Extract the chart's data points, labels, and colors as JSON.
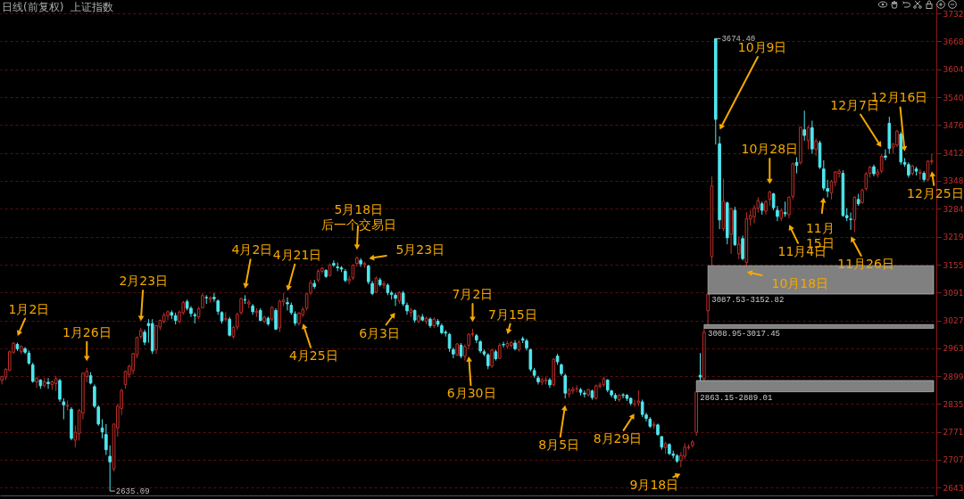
{
  "chart_data": {
    "type": "candlestick",
    "title": "日线(前复权)  上证指数",
    "categories": [
      null,
      null,
      null,
      null,
      null,
      null,
      null,
      null,
      null,
      null,
      null,
      null,
      null,
      null,
      null,
      null,
      null,
      null,
      null,
      null,
      null,
      null,
      null,
      null,
      null,
      null,
      null,
      null,
      null,
      null,
      null,
      null,
      null,
      null,
      null,
      null,
      null,
      null,
      null,
      null,
      null,
      null,
      null,
      null,
      null,
      null,
      null,
      null,
      null,
      null,
      null,
      null,
      null,
      null,
      null,
      null,
      null,
      null,
      null,
      null,
      null,
      null,
      null,
      null,
      null,
      null,
      null,
      null,
      null,
      null,
      null,
      null,
      null,
      null,
      null,
      null,
      null,
      null,
      null,
      null,
      null,
      null,
      null,
      null,
      null,
      null,
      null,
      null,
      null,
      null,
      null,
      null,
      null,
      null,
      null,
      null,
      null,
      null,
      null,
      null,
      null,
      null,
      null,
      null,
      null,
      null,
      null,
      null,
      null,
      null,
      null,
      null,
      null,
      null,
      null,
      null,
      null,
      null,
      null,
      null,
      null,
      null,
      null,
      null,
      null,
      null,
      null,
      null,
      null,
      null,
      null,
      null,
      null,
      null,
      null,
      null,
      null,
      null,
      null,
      null,
      null,
      null,
      null,
      null,
      null,
      null,
      null,
      null,
      null,
      null,
      null,
      null,
      null,
      null,
      null,
      null,
      null,
      null,
      null,
      null,
      null,
      null,
      null,
      null,
      null,
      null,
      null,
      null,
      null,
      null,
      null,
      null,
      null,
      null,
      null,
      null,
      null,
      null,
      null,
      null,
      null,
      null,
      null,
      null,
      null,
      null,
      null,
      null,
      null,
      null,
      null,
      null,
      null,
      null,
      null,
      null,
      null,
      null,
      null,
      null,
      null,
      null,
      null,
      null,
      null,
      null,
      null,
      null,
      null,
      null,
      null,
      null,
      null,
      null,
      null,
      null,
      null,
      null,
      null,
      null,
      null,
      null,
      null,
      null,
      null,
      null,
      null,
      null,
      null,
      null,
      null,
      null,
      null,
      null,
      null,
      null,
      null,
      null,
      null,
      null,
      null,
      null
    ],
    "ohlc": [
      [
        2890,
        2900,
        2880,
        2898
      ],
      [
        2897,
        2917,
        2890,
        2915
      ],
      [
        2913,
        2958,
        2910,
        2955
      ],
      [
        2954,
        2977,
        2950,
        2975
      ],
      [
        2972,
        2976,
        2957,
        2962
      ],
      [
        2955,
        2970,
        2950,
        2967
      ],
      [
        2962,
        2966,
        2950,
        2954
      ],
      [
        2952,
        2958,
        2925,
        2929
      ],
      [
        2925,
        2930,
        2884,
        2887
      ],
      [
        2886,
        2897,
        2872,
        2894
      ],
      [
        2890,
        2892,
        2870,
        2877
      ],
      [
        2878,
        2895,
        2873,
        2886
      ],
      [
        2885,
        2895,
        2870,
        2882
      ],
      [
        2880,
        2889,
        2868,
        2886
      ],
      [
        2882,
        2900,
        2865,
        2893
      ],
      [
        2889,
        2893,
        2840,
        2846
      ],
      [
        2840,
        2848,
        2800,
        2833
      ],
      [
        2830,
        2843,
        2820,
        2832
      ],
      [
        2823,
        2828,
        2752,
        2756
      ],
      [
        2752,
        2786,
        2735,
        2770
      ],
      [
        2767,
        2824,
        2751,
        2820
      ],
      [
        2814,
        2907,
        2800,
        2906
      ],
      [
        2898,
        2918,
        2885,
        2910
      ],
      [
        2900,
        2908,
        2880,
        2883
      ],
      [
        2875,
        2880,
        2826,
        2830
      ],
      [
        2828,
        2832,
        2785,
        2789
      ],
      [
        2780,
        2800,
        2756,
        2771
      ],
      [
        2765,
        2789,
        2718,
        2730
      ],
      [
        2715,
        2740,
        2635.09,
        2702
      ],
      [
        2686,
        2790,
        2680,
        2789
      ],
      [
        2780,
        2835,
        2760,
        2830
      ],
      [
        2825,
        2870,
        2810,
        2866
      ],
      [
        2880,
        2912,
        2870,
        2910
      ],
      [
        2903,
        2925,
        2895,
        2922
      ],
      [
        2912,
        2952,
        2903,
        2951
      ],
      [
        2948,
        2990,
        2940,
        2988
      ],
      [
        2990,
        3010,
        2985,
        3004
      ],
      [
        3000,
        3006,
        2970,
        2977
      ],
      [
        3020,
        3030,
        2976,
        3015
      ],
      [
        3020,
        3030,
        2950,
        2957
      ],
      [
        2960,
        3016,
        2950,
        3015
      ],
      [
        3012,
        3029,
        3005,
        3027
      ],
      [
        3025,
        3045,
        3020,
        3039
      ],
      [
        3038,
        3050,
        3028,
        3047
      ],
      [
        3045,
        3050,
        3030,
        3039
      ],
      [
        3038,
        3045,
        3018,
        3027
      ],
      [
        3025,
        3050,
        3020,
        3046
      ],
      [
        3045,
        3072,
        3040,
        3068
      ],
      [
        3070,
        3075,
        3050,
        3055
      ],
      [
        3055,
        3060,
        3035,
        3043
      ],
      [
        3040,
        3045,
        3020,
        3038
      ],
      [
        3035,
        3058,
        3030,
        3054
      ],
      [
        3056,
        3090,
        3055,
        3084
      ],
      [
        3080,
        3085,
        3065,
        3079
      ],
      [
        3075,
        3082,
        3068,
        3079
      ],
      [
        3080,
        3090,
        3070,
        3077
      ],
      [
        3072,
        3075,
        3040,
        3048
      ],
      [
        3045,
        3048,
        3020,
        3026
      ],
      [
        3030,
        3046,
        3025,
        3031
      ],
      [
        3030,
        3035,
        2990,
        2993
      ],
      [
        2990,
        3014,
        2985,
        3011
      ],
      [
        3012,
        3045,
        3005,
        3041
      ],
      [
        3045,
        3080,
        3040,
        3077
      ],
      [
        3075,
        3085,
        3065,
        3074
      ],
      [
        3065,
        3075,
        3055,
        3069
      ],
      [
        3060,
        3065,
        3040,
        3047
      ],
      [
        3045,
        3055,
        3035,
        3048
      ],
      [
        3050,
        3055,
        3025,
        3027
      ],
      [
        3025,
        3038,
        3020,
        3034
      ],
      [
        3032,
        3036,
        3015,
        3019
      ],
      [
        3030,
        3060,
        3025,
        3057
      ],
      [
        3050,
        3055,
        3005,
        3007
      ],
      [
        3010,
        3075,
        3000,
        3071
      ],
      [
        3070,
        3090,
        3060,
        3074
      ],
      [
        3068,
        3080,
        3050,
        3065
      ],
      [
        3062,
        3068,
        3040,
        3045
      ],
      [
        3042,
        3048,
        3015,
        3021
      ],
      [
        3020,
        3046,
        3015,
        3044
      ],
      [
        3040,
        3058,
        3035,
        3052
      ],
      [
        3055,
        3090,
        3050,
        3088
      ],
      [
        3090,
        3120,
        3085,
        3113
      ],
      [
        3112,
        3120,
        3100,
        3105
      ],
      [
        3120,
        3145,
        3115,
        3140
      ],
      [
        3140,
        3150,
        3135,
        3147
      ],
      [
        3142,
        3145,
        3125,
        3128
      ],
      [
        3130,
        3158,
        3128,
        3154
      ],
      [
        3158,
        3165,
        3150,
        3154
      ],
      [
        3150,
        3160,
        3140,
        3148
      ],
      [
        3148,
        3152,
        3138,
        3145
      ],
      [
        3140,
        3145,
        3115,
        3119
      ],
      [
        3118,
        3130,
        3110,
        3122
      ],
      [
        3125,
        3156,
        3120,
        3154
      ],
      [
        3158,
        3174,
        3150,
        3171
      ],
      [
        3165,
        3170,
        3150,
        3157
      ],
      [
        3155,
        3162,
        3148,
        3158
      ],
      [
        3152,
        3155,
        3110,
        3116
      ],
      [
        3112,
        3118,
        3085,
        3089
      ],
      [
        3092,
        3128,
        3090,
        3124
      ],
      [
        3120,
        3125,
        3105,
        3109
      ],
      [
        3108,
        3118,
        3100,
        3111
      ],
      [
        3108,
        3112,
        3085,
        3091
      ],
      [
        3090,
        3095,
        3075,
        3087
      ],
      [
        3085,
        3090,
        3060,
        3078
      ],
      [
        3072,
        3094,
        3065,
        3091
      ],
      [
        3090,
        3095,
        3060,
        3065
      ],
      [
        3062,
        3068,
        3040,
        3049
      ],
      [
        3045,
        3056,
        3035,
        3051
      ],
      [
        3050,
        3052,
        3022,
        3028
      ],
      [
        3025,
        3040,
        3020,
        3037
      ],
      [
        3035,
        3042,
        3025,
        3028
      ],
      [
        3025,
        3036,
        3018,
        3032
      ],
      [
        3030,
        3034,
        3010,
        3015
      ],
      [
        3015,
        3034,
        3010,
        3030
      ],
      [
        3025,
        3030,
        3012,
        3018
      ],
      [
        3015,
        3020,
        2995,
        2999
      ],
      [
        3000,
        3005,
        2990,
        2998
      ],
      [
        2995,
        2998,
        2955,
        2963
      ],
      [
        2960,
        2965,
        2940,
        2950
      ],
      [
        2948,
        2975,
        2945,
        2973
      ],
      [
        2970,
        2975,
        2940,
        2945
      ],
      [
        2945,
        2972,
        2935,
        2967
      ],
      [
        2970,
        2998,
        2960,
        2995
      ],
      [
        2995,
        3008,
        2990,
        2997
      ],
      [
        2992,
        2996,
        2975,
        2982
      ],
      [
        2978,
        2982,
        2952,
        2957
      ],
      [
        2955,
        2960,
        2945,
        2950
      ],
      [
        2948,
        2952,
        2915,
        2923
      ],
      [
        2922,
        2962,
        2918,
        2959
      ],
      [
        2955,
        2960,
        2935,
        2939
      ],
      [
        2940,
        2975,
        2938,
        2970
      ],
      [
        2972,
        2978,
        2965,
        2971
      ],
      [
        2968,
        2980,
        2962,
        2974
      ],
      [
        2970,
        2980,
        2965,
        2976
      ],
      [
        2975,
        2982,
        2958,
        2962
      ],
      [
        2960,
        2982,
        2955,
        2977
      ],
      [
        2985,
        2990,
        2975,
        2982
      ],
      [
        2980,
        2985,
        2958,
        2964
      ],
      [
        2960,
        2962,
        2910,
        2915
      ],
      [
        2912,
        2918,
        2895,
        2901
      ],
      [
        2895,
        2900,
        2880,
        2886
      ],
      [
        2885,
        2895,
        2878,
        2890
      ],
      [
        2888,
        2898,
        2880,
        2891
      ],
      [
        2890,
        2895,
        2872,
        2879
      ],
      [
        2880,
        2940,
        2875,
        2938
      ],
      [
        2945,
        2950,
        2925,
        2932
      ],
      [
        2925,
        2928,
        2900,
        2905
      ],
      [
        2900,
        2905,
        2848,
        2860
      ],
      [
        2858,
        2872,
        2850,
        2867
      ],
      [
        2865,
        2875,
        2858,
        2869
      ],
      [
        2870,
        2878,
        2862,
        2870
      ],
      [
        2868,
        2872,
        2855,
        2862
      ],
      [
        2860,
        2866,
        2850,
        2858
      ],
      [
        2856,
        2870,
        2852,
        2868
      ],
      [
        2865,
        2868,
        2845,
        2850
      ],
      [
        2848,
        2880,
        2845,
        2877
      ],
      [
        2876,
        2885,
        2870,
        2879
      ],
      [
        2880,
        2898,
        2875,
        2893
      ],
      [
        2890,
        2892,
        2862,
        2867
      ],
      [
        2865,
        2868,
        2850,
        2856
      ],
      [
        2855,
        2860,
        2842,
        2848
      ],
      [
        2845,
        2858,
        2840,
        2855
      ],
      [
        2856,
        2860,
        2848,
        2855
      ],
      [
        2855,
        2858,
        2842,
        2848
      ],
      [
        2848,
        2850,
        2832,
        2837
      ],
      [
        2835,
        2845,
        2828,
        2835
      ],
      [
        2838,
        2866,
        2830,
        2842
      ],
      [
        2840,
        2845,
        2805,
        2811
      ],
      [
        2810,
        2815,
        2795,
        2802
      ],
      [
        2800,
        2805,
        2780,
        2784
      ],
      [
        2785,
        2795,
        2778,
        2788
      ],
      [
        2787,
        2790,
        2762,
        2765
      ],
      [
        2760,
        2762,
        2730,
        2736
      ],
      [
        2735,
        2748,
        2720,
        2744
      ],
      [
        2742,
        2745,
        2718,
        2721
      ],
      [
        2720,
        2728,
        2710,
        2717
      ],
      [
        2716,
        2720,
        2700,
        2704
      ],
      [
        2705,
        2725,
        2689.7,
        2717
      ],
      [
        2715,
        2745,
        2708,
        2736
      ],
      [
        2735,
        2742,
        2730,
        2736
      ],
      [
        2740,
        2752,
        2735,
        2748
      ],
      [
        2770,
        2863.15,
        2762,
        2863
      ],
      [
        2901,
        2952,
        2889.01,
        2897
      ],
      [
        2893,
        3008.95,
        2889,
        3000
      ],
      [
        3049,
        3087.53,
        3017.45,
        3087
      ],
      [
        3174,
        3358,
        3152.82,
        3336
      ],
      [
        3674.4,
        3674.4,
        3431,
        3489
      ],
      [
        3433,
        3450,
        3237,
        3258
      ],
      [
        3238,
        3353,
        3232,
        3301
      ],
      [
        3297,
        3300,
        3202,
        3217
      ],
      [
        3225,
        3286,
        3180,
        3284
      ],
      [
        3280,
        3288,
        3198,
        3201
      ],
      [
        3180,
        3220,
        3168,
        3202
      ],
      [
        3215,
        3222,
        3165,
        3169
      ],
      [
        3160,
        3276,
        3152.98,
        3261
      ],
      [
        3260,
        3280,
        3245,
        3268
      ],
      [
        3265,
        3292,
        3250,
        3285
      ],
      [
        3285,
        3310,
        3275,
        3302
      ],
      [
        3295,
        3300,
        3270,
        3280
      ],
      [
        3278,
        3304,
        3270,
        3300
      ],
      [
        3305,
        3325,
        3290,
        3322
      ],
      [
        3318,
        3320,
        3280,
        3286
      ],
      [
        3280,
        3290,
        3255,
        3266
      ],
      [
        3262,
        3285,
        3255,
        3279
      ],
      [
        3275,
        3300,
        3265,
        3272
      ],
      [
        3270,
        3312,
        3262,
        3310
      ],
      [
        3312,
        3390,
        3305,
        3387
      ],
      [
        3390,
        3402,
        3365,
        3383
      ],
      [
        3390,
        3472,
        3385,
        3471
      ],
      [
        3465,
        3509,
        3440,
        3452
      ],
      [
        3440,
        3475,
        3420,
        3470
      ],
      [
        3470,
        3486,
        3410,
        3421
      ],
      [
        3420,
        3445,
        3405,
        3439
      ],
      [
        3435,
        3440,
        3375,
        3379
      ],
      [
        3375,
        3395,
        3325,
        3331
      ],
      [
        3330,
        3350,
        3310,
        3324
      ],
      [
        3320,
        3350,
        3305,
        3346
      ],
      [
        3345,
        3370,
        3335,
        3368
      ],
      [
        3365,
        3375,
        3355,
        3370
      ],
      [
        3365,
        3372,
        3265,
        3268
      ],
      [
        3268,
        3285,
        3255,
        3263
      ],
      [
        3260,
        3275,
        3235,
        3259
      ],
      [
        3258,
        3312,
        3230,
        3310
      ],
      [
        3305,
        3318,
        3290,
        3295
      ],
      [
        3298,
        3330,
        3295,
        3326
      ],
      [
        3330,
        3368,
        3325,
        3364
      ],
      [
        3365,
        3382,
        3355,
        3379
      ],
      [
        3380,
        3385,
        3358,
        3364
      ],
      [
        3362,
        3375,
        3355,
        3368
      ],
      [
        3370,
        3410,
        3365,
        3404
      ],
      [
        3405,
        3420,
        3395,
        3402
      ],
      [
        3480,
        3495,
        3410,
        3422
      ],
      [
        3425,
        3435,
        3410,
        3432
      ],
      [
        3430,
        3465,
        3425,
        3462
      ],
      [
        3455,
        3460,
        3385,
        3391
      ],
      [
        3390,
        3400,
        3380,
        3386
      ],
      [
        3385,
        3390,
        3355,
        3361
      ],
      [
        3365,
        3385,
        3360,
        3382
      ],
      [
        3375,
        3380,
        3360,
        3370
      ],
      [
        3365,
        3375,
        3350,
        3368
      ],
      [
        3365,
        3370,
        3345,
        3351
      ],
      [
        3350,
        3395,
        3348,
        3393
      ],
      [
        3392,
        3410,
        3385,
        3394
      ]
    ],
    "ylim": [
      2625,
      3755
    ],
    "yticks": [
      2643,
      2707,
      2771,
      2835,
      2899,
      2963,
      3027,
      3091,
      3155,
      3219,
      3284,
      3348,
      3412,
      3476,
      3540,
      3604,
      3668,
      3732
    ],
    "tick_labels": "y",
    "grid": "y",
    "bands": [
      {
        "axis": "y",
        "from": 3087.53,
        "to": 3152.82,
        "label": "3087.53-3152.82",
        "color": "#808080"
      },
      {
        "axis": "y",
        "from": 3008.95,
        "to": 3017.45,
        "label": "3008.95-3017.45",
        "color": "#808080"
      },
      {
        "axis": "y",
        "from": 2863.15,
        "to": 2889.01,
        "label": "2863.15-2889.01",
        "color": "#808080"
      }
    ],
    "annotations": [
      "1月2日",
      "1月26日",
      "2月23日",
      "4月2日",
      "4月21日",
      "4月25日",
      "5月18日后一个交易日",
      "5月23日",
      "6月3日",
      "6月30日",
      "7月2日",
      "7月15日",
      "8月5日",
      "8月29日",
      "9月18日",
      "10月9日",
      "10月28日",
      "10月18日",
      "11月4日",
      "11月15日",
      "11月26日",
      "12月7日",
      "12月16日",
      "12月25日",
      "3674.40",
      "2635.09"
    ]
  }
}
